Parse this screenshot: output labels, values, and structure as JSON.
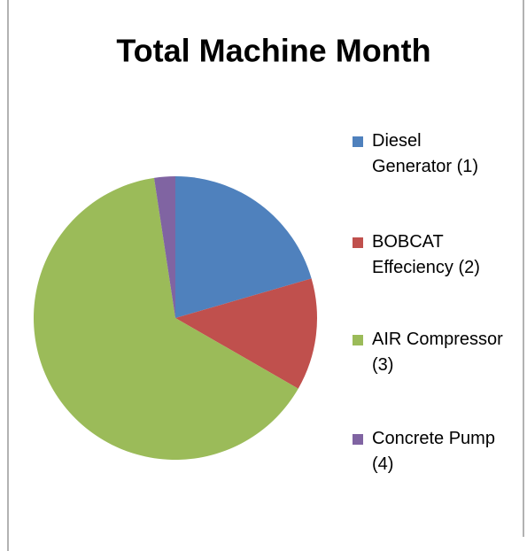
{
  "chart_data": {
    "type": "pie",
    "title": "Total Machine Month",
    "categories": [
      "Diesel Generator (1)",
      "BOBCAT Effeciency (2)",
      "AIR Compressor (3)",
      "Concrete Pump (4)"
    ],
    "values": [
      20.5,
      12.8,
      64.3,
      2.4
    ],
    "colors": [
      "#4f81bd",
      "#c0504d",
      "#9bbb59",
      "#8064a2"
    ]
  }
}
